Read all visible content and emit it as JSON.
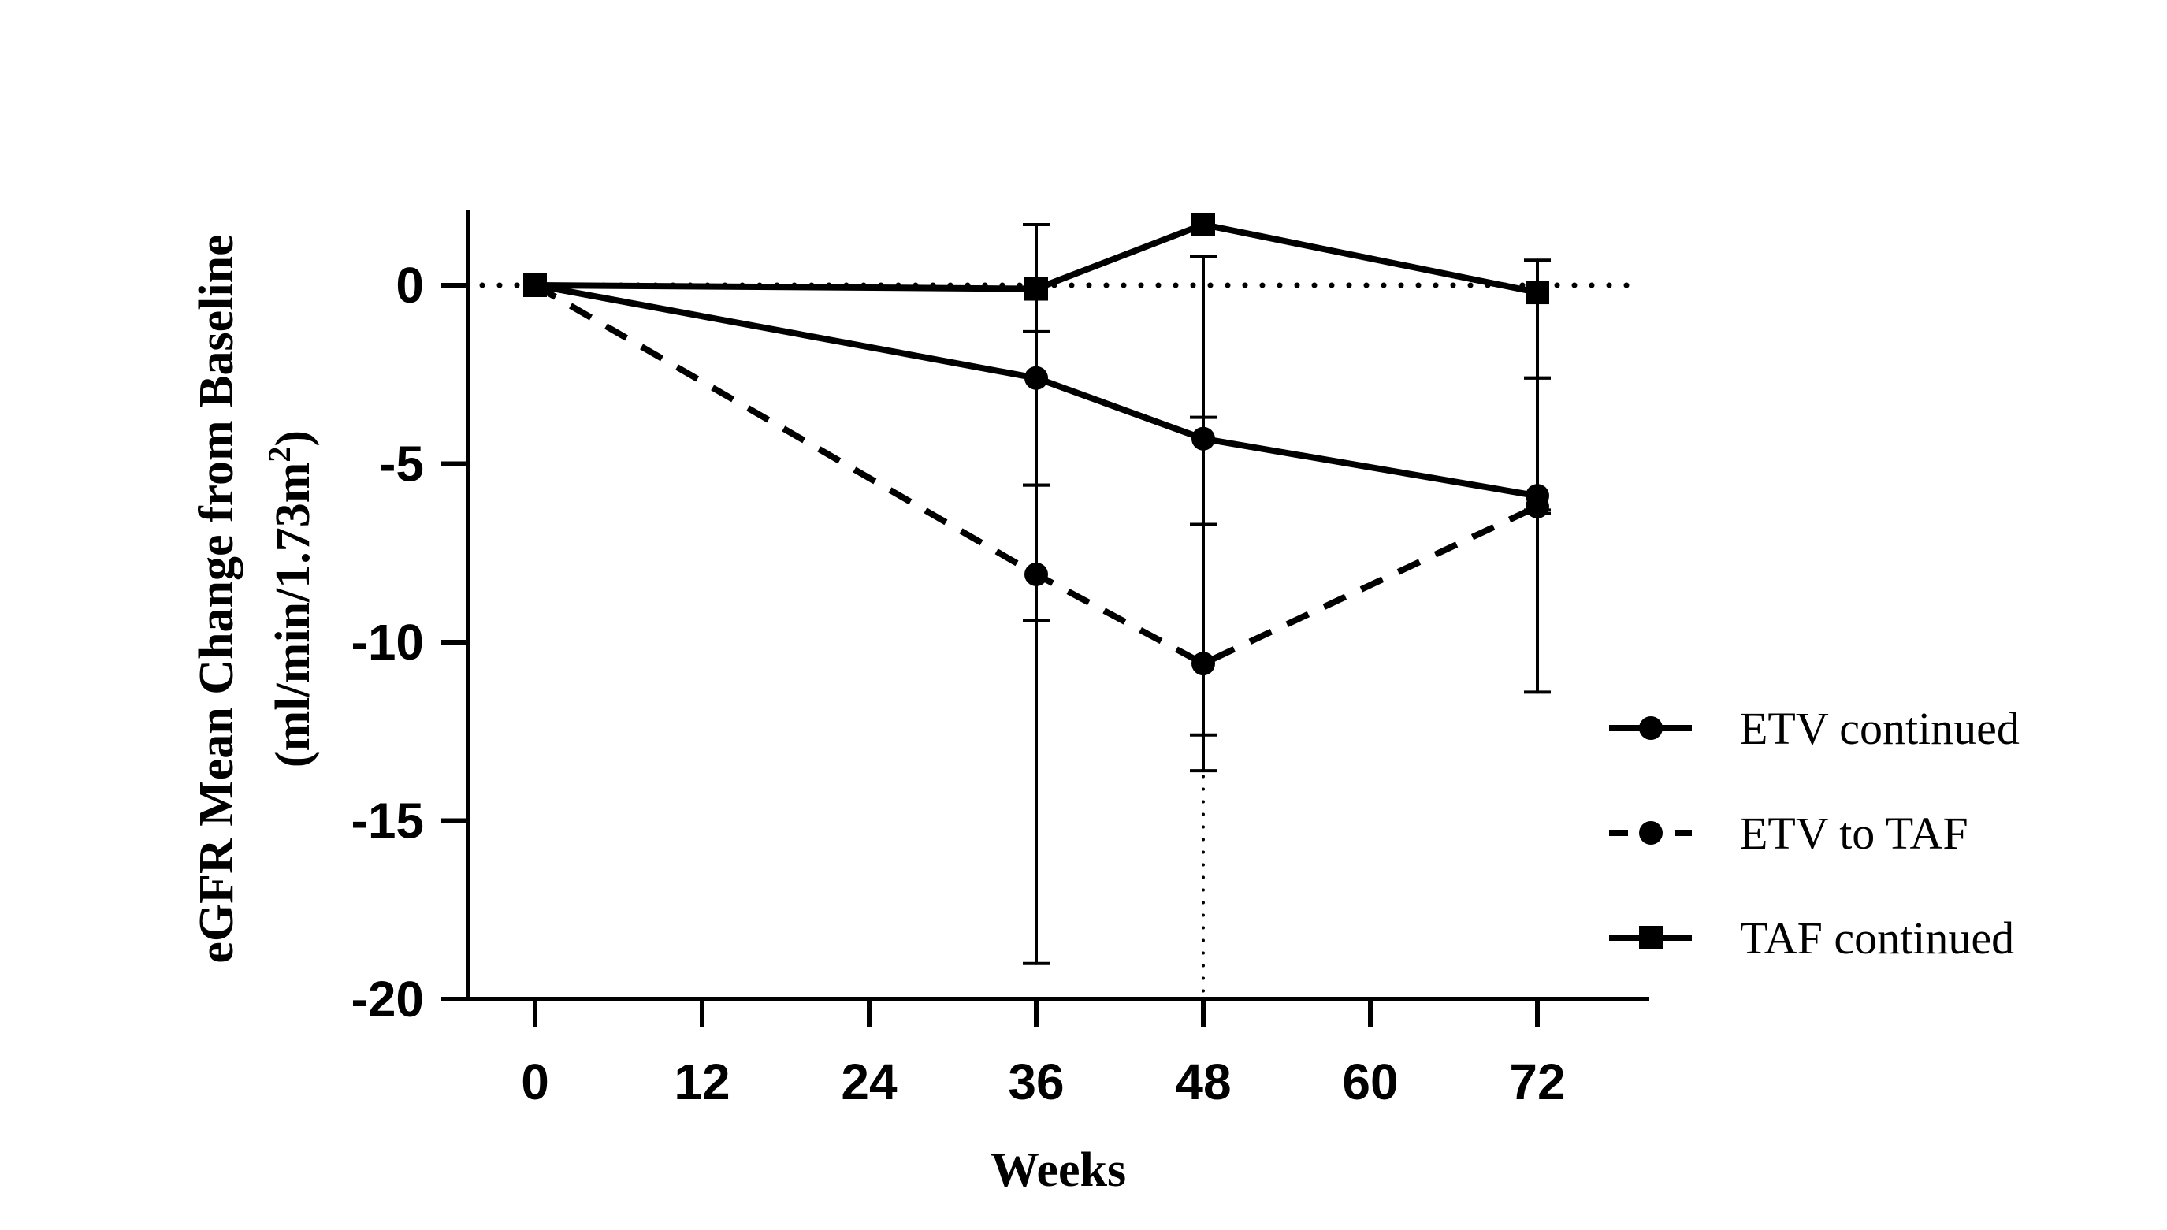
{
  "chart_data": {
    "type": "line",
    "title": "",
    "xlabel": "Weeks",
    "ylabel_line1": "eGFR Mean Change from Baseline",
    "ylabel_line2_prefix": "(ml/min/1.73m",
    "ylabel_line2_sup": "2",
    "ylabel_line2_suffix": ")",
    "x_ticks": [
      0,
      12,
      24,
      36,
      48,
      60,
      72
    ],
    "y_ticks": [
      0,
      -5,
      -10,
      -15,
      -20
    ],
    "xlim": [
      -4,
      78
    ],
    "ylim": [
      -20,
      2
    ],
    "reference_line_y": 0,
    "legend_position": "right",
    "series": [
      {
        "name": "ETV continued",
        "style": "solid",
        "marker": "circle",
        "x": [
          0,
          36,
          48,
          72
        ],
        "y": [
          0,
          -2.6,
          -4.3,
          -5.9
        ],
        "err": [
          null,
          [
            -5.6,
            -1.3
          ],
          [
            -12.6,
            -3.7
          ],
          [
            -11.4,
            -2.6
          ]
        ]
      },
      {
        "name": "ETV to TAF",
        "style": "dashed",
        "marker": "circle",
        "x": [
          0,
          36,
          48,
          72
        ],
        "y": [
          0,
          -8.1,
          -10.6,
          -6.2
        ],
        "err": [
          null,
          [
            -9.4,
            -5.6
          ],
          [
            -20,
            -6.7
          ],
          [
            -6.4,
            -2.6
          ]
        ]
      },
      {
        "name": "TAF continued",
        "style": "solid",
        "marker": "square",
        "x": [
          0,
          36,
          48,
          72
        ],
        "y": [
          0,
          -0.1,
          1.7,
          -0.2
        ],
        "err": [
          null,
          [
            -19.0,
            1.7
          ],
          [
            -13.6,
            0.8
          ],
          [
            -6.3,
            0.7
          ]
        ]
      }
    ]
  }
}
